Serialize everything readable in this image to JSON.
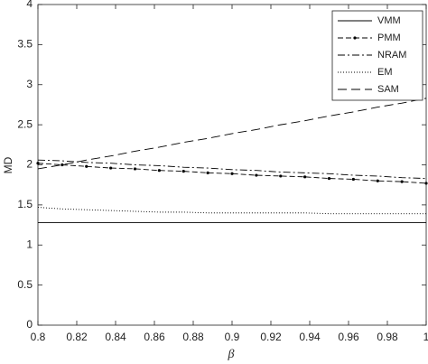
{
  "chart_data": {
    "type": "line",
    "x_label": "β",
    "y_label": "MD",
    "x": [
      0.8,
      0.8125,
      0.825,
      0.8375,
      0.85,
      0.8625,
      0.875,
      0.8875,
      0.9,
      0.9125,
      0.925,
      0.9375,
      0.95,
      0.9625,
      0.975,
      0.9875,
      1
    ],
    "series": [
      {
        "name": "VMM",
        "color": "#000000",
        "dash": "solid",
        "values": [
          1.28,
          1.28,
          1.28,
          1.28,
          1.28,
          1.28,
          1.28,
          1.28,
          1.28,
          1.28,
          1.28,
          1.28,
          1.28,
          1.28,
          1.28,
          1.28,
          1.28
        ]
      },
      {
        "name": "PMM",
        "color": "#000000",
        "dash": "dashed",
        "marker": "dot",
        "values": [
          2.02,
          2.0,
          1.98,
          1.96,
          1.95,
          1.93,
          1.92,
          1.9,
          1.89,
          1.87,
          1.86,
          1.85,
          1.83,
          1.82,
          1.8,
          1.79,
          1.77
        ]
      },
      {
        "name": "NRAM",
        "color": "#000000",
        "dash": "dashdot",
        "values": [
          2.06,
          2.05,
          2.03,
          2.02,
          2.0,
          1.99,
          1.97,
          1.96,
          1.94,
          1.93,
          1.91,
          1.9,
          1.89,
          1.87,
          1.86,
          1.84,
          1.83
        ]
      },
      {
        "name": "EM",
        "color": "#000000",
        "dash": "dotted",
        "values": [
          1.47,
          1.45,
          1.44,
          1.43,
          1.42,
          1.41,
          1.41,
          1.4,
          1.4,
          1.4,
          1.4,
          1.4,
          1.39,
          1.39,
          1.39,
          1.39,
          1.39
        ]
      },
      {
        "name": "SAM",
        "color": "#000000",
        "dash": "longdash",
        "values": [
          1.95,
          2.0,
          2.06,
          2.11,
          2.17,
          2.22,
          2.28,
          2.33,
          2.39,
          2.44,
          2.5,
          2.55,
          2.61,
          2.66,
          2.72,
          2.77,
          2.83
        ]
      }
    ],
    "xlim": [
      0.8,
      1
    ],
    "xticks": [
      0.8,
      0.82,
      0.84,
      0.86,
      0.88,
      0.9,
      0.92,
      0.94,
      0.96,
      0.98,
      1
    ],
    "ylim": [
      0,
      4
    ],
    "yticks": [
      0,
      0.5,
      1,
      1.5,
      2,
      2.5,
      3,
      3.5,
      4
    ],
    "grid": false,
    "legend": "upper-right"
  }
}
